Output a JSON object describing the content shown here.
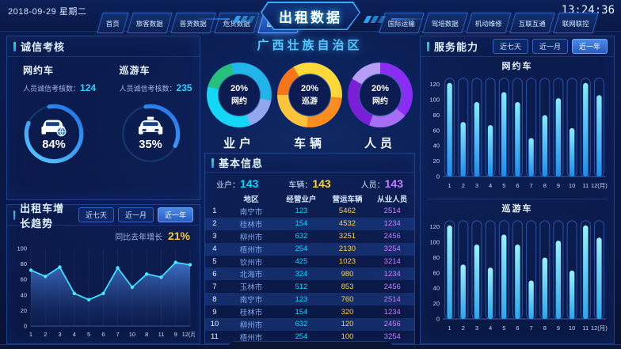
{
  "header": {
    "date": "2018-09-29 星期二",
    "time": "13:24:36",
    "title": "出租数据",
    "left_tabs": [
      {
        "name": "tab-home",
        "label": "首页",
        "active": false
      },
      {
        "name": "tab-passenger-data",
        "label": "旅客数据",
        "active": false
      },
      {
        "name": "tab-general-freight-data",
        "label": "普货数据",
        "active": false
      },
      {
        "name": "tab-dangerous-goods-data",
        "label": "危货数据",
        "active": false
      },
      {
        "name": "tab-taxi-data",
        "label": "出租数据",
        "active": true
      }
    ],
    "right_tabs": [
      {
        "name": "tab-international-transport",
        "label": "国际运输",
        "active": false
      },
      {
        "name": "tab-driver-training-data",
        "label": "驾培数据",
        "active": false
      },
      {
        "name": "tab-vehicle-maintenance",
        "label": "机动维修",
        "active": false
      },
      {
        "name": "tab-interconnection",
        "label": "互联互通",
        "active": false
      },
      {
        "name": "tab-network-monitoring",
        "label": "联网联控",
        "active": false
      }
    ]
  },
  "integrity": {
    "title": "诚信考核",
    "groups": [
      {
        "name": "网约车",
        "metric_label": "人员诚信考核数",
        "metric_value": "124",
        "percent": 84,
        "percent_label": "84%",
        "icon": "ride-hailing-car-icon"
      },
      {
        "name": "巡游车",
        "metric_label": "人员诚信考核数",
        "metric_value": "235",
        "percent": 35,
        "percent_label": "35%",
        "icon": "taxi-icon"
      }
    ]
  },
  "growth": {
    "title": "出租车增长趋势",
    "ranges": [
      {
        "name": "range-last-7-days",
        "label": "近七天",
        "active": false
      },
      {
        "name": "range-last-month",
        "label": "近一月",
        "active": false
      },
      {
        "name": "range-last-year",
        "label": "近一年",
        "active": true
      }
    ],
    "yoy_label": "同比去年增长",
    "yoy_value": "21%"
  },
  "center": {
    "region": "广西壮族自治区"
  },
  "basic_info": {
    "title": "基本信息",
    "stats": [
      {
        "label": "业户",
        "value": "143",
        "color": "#00d8ff"
      },
      {
        "label": "车辆",
        "value": "143",
        "color": "#ffd237"
      },
      {
        "label": "人员",
        "value": "143",
        "color": "#c77dff"
      }
    ],
    "table": {
      "headers": [
        "地区",
        "经营业户",
        "营运车辆",
        "从业人员"
      ],
      "column_colors": {
        "operators": "#00d8ff",
        "vehicles": "#ffd237",
        "staff": "#c77dff"
      },
      "rows": [
        {
          "rank": "1",
          "city": "南宁市",
          "operators": "123",
          "vehicles": "5462",
          "staff": "2514"
        },
        {
          "rank": "2",
          "city": "桂林市",
          "operators": "154",
          "vehicles": "4532",
          "staff": "1234"
        },
        {
          "rank": "3",
          "city": "柳州市",
          "operators": "632",
          "vehicles": "3251",
          "staff": "2456"
        },
        {
          "rank": "4",
          "city": "梧州市",
          "operators": "254",
          "vehicles": "2130",
          "staff": "3254"
        },
        {
          "rank": "5",
          "city": "钦州市",
          "operators": "425",
          "vehicles": "1023",
          "staff": "3214"
        },
        {
          "rank": "6",
          "city": "北海市",
          "operators": "324",
          "vehicles": "980",
          "staff": "1234"
        },
        {
          "rank": "7",
          "city": "玉林市",
          "operators": "512",
          "vehicles": "853",
          "staff": "2456"
        },
        {
          "rank": "8",
          "city": "南宁市",
          "operators": "123",
          "vehicles": "760",
          "staff": "2514"
        },
        {
          "rank": "9",
          "city": "桂林市",
          "operators": "154",
          "vehicles": "320",
          "staff": "1234"
        },
        {
          "rank": "10",
          "city": "柳州市",
          "operators": "632",
          "vehicles": "120",
          "staff": "2456"
        },
        {
          "rank": "11",
          "city": "梧州市",
          "operators": "254",
          "vehicles": "100",
          "staff": "3254"
        }
      ]
    }
  },
  "service": {
    "title": "服务能力",
    "ranges": [
      {
        "name": "range-last-7-days",
        "label": "近七天",
        "active": false
      },
      {
        "name": "range-last-month",
        "label": "近一月",
        "active": false
      },
      {
        "name": "range-last-year",
        "label": "近一年",
        "active": true
      }
    ]
  },
  "chart_data": [
    {
      "id": "growth-line",
      "type": "line",
      "title": "出租车增长趋势",
      "x": [
        "1",
        "2",
        "3",
        "4",
        "5",
        "6",
        "7",
        "10",
        "8",
        "11",
        "9",
        "12(月)"
      ],
      "values": [
        72,
        64,
        76,
        42,
        34,
        42,
        75,
        50,
        67,
        63,
        82,
        79
      ],
      "ylim": [
        0,
        100
      ],
      "yticks": [
        0,
        20,
        40,
        60,
        80,
        100
      ],
      "line_color": "#38e1ff",
      "marker_color": "#49e9ff",
      "area_top": "#4479d6",
      "area_bottom": "#12255e",
      "legend": "none",
      "grid": "faint-vertical"
    },
    {
      "id": "service-bars-ride-hailing",
      "type": "bar",
      "title": "网约车",
      "categories": [
        "1",
        "2",
        "3",
        "4",
        "5",
        "6",
        "7",
        "8",
        "9",
        "10",
        "11",
        "12(月)"
      ],
      "values": [
        122,
        71,
        97,
        67,
        110,
        97,
        50,
        80,
        102,
        63,
        122,
        106
      ],
      "ylim": [
        0,
        130
      ],
      "yticks": [
        0,
        20,
        40,
        60,
        80,
        100,
        120
      ],
      "bar_top": "#83ecff",
      "bar_bottom": "#1b8df0",
      "track": "#2c5cc0"
    },
    {
      "id": "service-bars-cruising-taxi",
      "type": "bar",
      "title": "巡游车",
      "categories": [
        "1",
        "2",
        "3",
        "4",
        "5",
        "6",
        "7",
        "8",
        "9",
        "10",
        "11",
        "12(月)"
      ],
      "values": [
        122,
        71,
        97,
        67,
        110,
        97,
        50,
        80,
        102,
        63,
        122,
        106
      ],
      "ylim": [
        0,
        130
      ],
      "yticks": [
        0,
        20,
        40,
        60,
        80,
        100,
        120
      ],
      "bar_top": "#97f2fb",
      "bar_bottom": "#2aa6ef",
      "track": "#2c5cc0"
    },
    {
      "id": "donut-operators",
      "type": "pie",
      "label": "业户",
      "center_pct": "20%",
      "center_text": "网约",
      "segments": [
        {
          "color": "#23b4e9",
          "to": 100
        },
        {
          "color": "#93a7f0",
          "to": 160
        },
        {
          "color": "#14d6f5",
          "to": 285
        },
        {
          "color": "#27bf7c",
          "to": 345
        },
        {
          "color": "#23b4e9",
          "to": 360
        }
      ]
    },
    {
      "id": "donut-vehicles",
      "type": "pie",
      "label": "车辆",
      "center_pct": "20%",
      "center_text": "巡游",
      "segments": [
        {
          "color": "#ffd83a",
          "to": 95
        },
        {
          "color": "#ff8c1f",
          "to": 185
        },
        {
          "color": "#ffc43c",
          "to": 270
        },
        {
          "color": "#f9741a",
          "to": 330
        },
        {
          "color": "#ffd83a",
          "to": 360
        }
      ]
    },
    {
      "id": "donut-personnel",
      "type": "pie",
      "label": "人员",
      "center_pct": "20%",
      "center_text": "网约",
      "segments": [
        {
          "color": "#8a2df2",
          "to": 130
        },
        {
          "color": "#a76ef5",
          "to": 200
        },
        {
          "color": "#7a1fd8",
          "to": 300
        },
        {
          "color": "#b79df6",
          "to": 360
        }
      ]
    }
  ]
}
